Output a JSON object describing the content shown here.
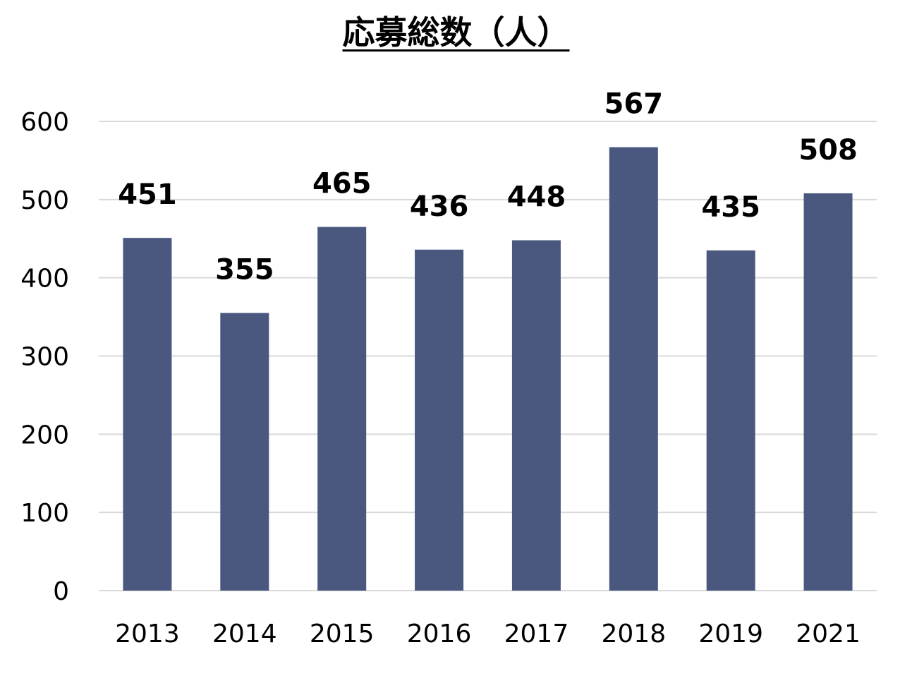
{
  "chart_data": {
    "type": "bar",
    "title": "応募総数（人）",
    "categories": [
      "2013",
      "2014",
      "2015",
      "2016",
      "2017",
      "2018",
      "2019",
      "2021"
    ],
    "values": [
      451,
      355,
      465,
      436,
      448,
      567,
      435,
      508
    ],
    "data_labels": [
      "451",
      "355",
      "465",
      "436",
      "448",
      "567",
      "435",
      "508"
    ],
    "y_ticks": [
      "0",
      "100",
      "200",
      "300",
      "400",
      "500",
      "600"
    ],
    "ylim": [
      0,
      600
    ],
    "xlabel": "",
    "ylabel": "",
    "grid": true,
    "legend": "none",
    "bar_color": "#4a5880",
    "grid_color": "#d9d9d9"
  }
}
